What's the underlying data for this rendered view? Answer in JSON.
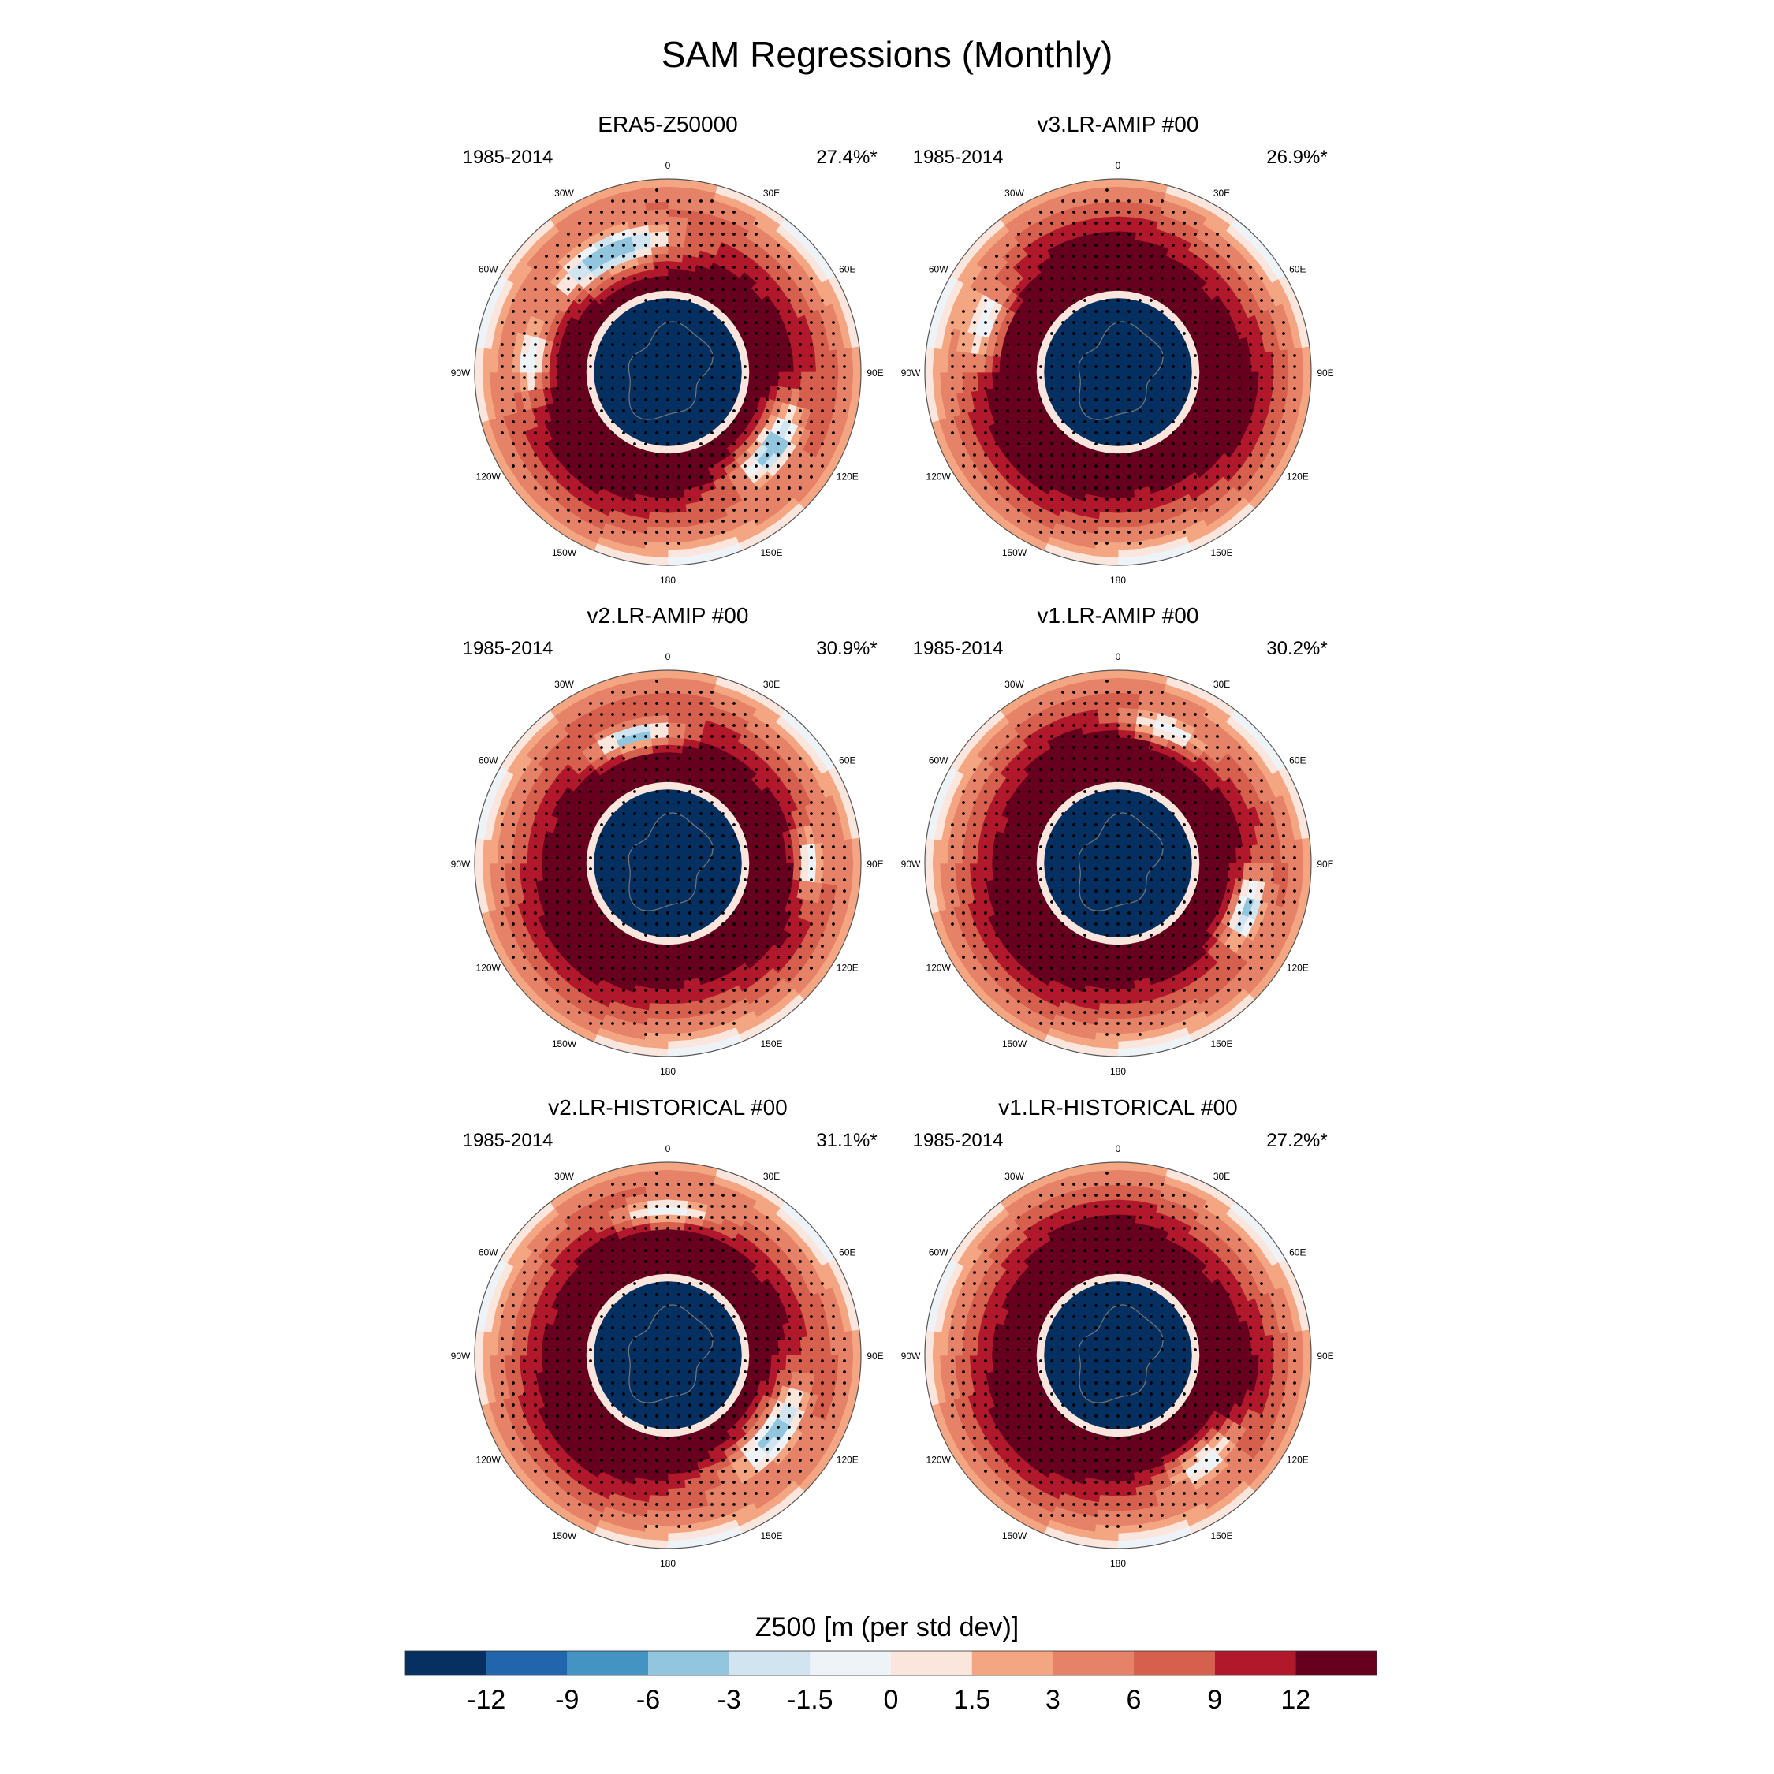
{
  "figure": {
    "title": "SAM Regressions (Monthly)",
    "colorbar_label": "Z500 [m (per std dev)]"
  },
  "lon_labels": [
    "0",
    "30E",
    "60E",
    "90E",
    "120E",
    "150E",
    "180",
    "150W",
    "120W",
    "90W",
    "60W",
    "30W"
  ],
  "colors": {
    "ring_red": "#67001f",
    "center_blue": "#053061",
    "coast": "#777777",
    "stipple": "#000000",
    "frame": "#555555"
  },
  "chart_data": {
    "type": "heatmap",
    "projection": "south-polar-stereographic",
    "variable": "Z500 regression on SAM index",
    "units": "m (per std dev)",
    "colorbar": {
      "levels": [
        -12,
        -9,
        -6,
        -3,
        -1.5,
        0,
        1.5,
        3,
        6,
        9,
        12
      ],
      "tick_labels": [
        "-12",
        "-9",
        "-6",
        "-3",
        "-1.5",
        "0",
        "1.5",
        "3",
        "6",
        "9",
        "12"
      ],
      "colors": [
        "#053061",
        "#2166ac",
        "#4393c3",
        "#92c5de",
        "#d1e5f0",
        "#eef3f8",
        "#fbe6de",
        "#f4a582",
        "#e58268",
        "#d6604d",
        "#b2182b",
        "#67001f"
      ]
    },
    "panels": [
      {
        "id": "era5",
        "title": "ERA5-Z50000",
        "period": "1985-2014",
        "variance": "27.4%*",
        "blue_lobes": [
          {
            "lon": -25,
            "lat": -42,
            "rlon": 24,
            "rlat": 6,
            "strength": -6
          },
          {
            "lon": 125,
            "lat": -43,
            "rlon": 18,
            "rlat": 6,
            "strength": -5
          },
          {
            "lon": -85,
            "lat": -40,
            "rlon": 12,
            "rlat": 5,
            "strength": -1.5
          }
        ]
      },
      {
        "id": "v3-amip",
        "title": "v3.LR-AMIP  #00",
        "period": "1985-2014",
        "variance": "26.9%*",
        "blue_lobes": [
          {
            "lon": -70,
            "lat": -38,
            "rlon": 12,
            "rlat": 5,
            "strength": -1.5
          }
        ]
      },
      {
        "id": "v2-amip",
        "title": "v2.LR-AMIP  #00",
        "period": "1985-2014",
        "variance": "30.9%*",
        "blue_lobes": [
          {
            "lon": -15,
            "lat": -42,
            "rlon": 16,
            "rlat": 4,
            "strength": -4
          },
          {
            "lon": 90,
            "lat": -38,
            "rlon": 12,
            "rlat": 4,
            "strength": -1.5
          }
        ]
      },
      {
        "id": "v1-amip",
        "title": "v1.LR-AMIP  #00",
        "period": "1985-2014",
        "variance": "30.2%*",
        "blue_lobes": [
          {
            "lon": 110,
            "lat": -40,
            "rlon": 14,
            "rlat": 5,
            "strength": -4
          },
          {
            "lon": 20,
            "lat": -38,
            "rlon": 14,
            "rlat": 4,
            "strength": -1.5
          }
        ]
      },
      {
        "id": "v2-hist",
        "title": "v2.LR-HISTORICAL  #00",
        "period": "1985-2014",
        "variance": "31.1%*",
        "blue_lobes": [
          {
            "lon": 125,
            "lat": -42,
            "rlon": 22,
            "rlat": 6,
            "strength": -4
          },
          {
            "lon": 0,
            "lat": -37,
            "rlon": 16,
            "rlat": 4,
            "strength": -1.5
          }
        ]
      },
      {
        "id": "v1-hist",
        "title": "v1.LR-HISTORICAL  #00",
        "period": "1985-2014",
        "variance": "27.2%*",
        "blue_lobes": [
          {
            "lon": 140,
            "lat": -40,
            "rlon": 14,
            "rlat": 5,
            "strength": -1.5
          }
        ]
      }
    ]
  }
}
